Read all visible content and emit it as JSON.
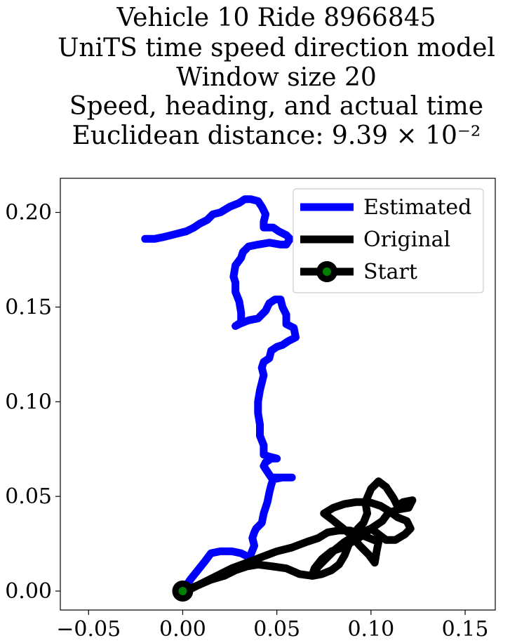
{
  "chart_data": {
    "type": "line",
    "title_lines": [
      "Vehicle 10 Ride 8966845",
      "UniTS time speed direction model",
      "Window size 20",
      "Speed, heading, and actual time",
      "Euclidean distance: 9.39 × 10⁻²"
    ],
    "xlabel": "",
    "ylabel": "",
    "xlim": [
      -0.065,
      0.166
    ],
    "ylim": [
      -0.01,
      0.218
    ],
    "x_ticks": [
      -0.05,
      0.0,
      0.05,
      0.1,
      0.15
    ],
    "x_tick_labels": [
      "−0.05",
      "0.00",
      "0.05",
      "0.10",
      "0.15"
    ],
    "y_ticks": [
      0.0,
      0.05,
      0.1,
      0.15,
      0.2
    ],
    "y_tick_labels": [
      "0.00",
      "0.05",
      "0.10",
      "0.15",
      "0.20"
    ],
    "grid": false,
    "legend_position": "top-right",
    "series": [
      {
        "name": "Estimated",
        "color": "#0000ff",
        "points": [
          [
            0.0,
            0.0
          ],
          [
            0.004,
            0.006
          ],
          [
            0.008,
            0.011
          ],
          [
            0.012,
            0.016
          ],
          [
            0.015,
            0.02
          ],
          [
            0.02,
            0.021
          ],
          [
            0.026,
            0.021
          ],
          [
            0.031,
            0.02
          ],
          [
            0.035,
            0.018
          ],
          [
            0.036,
            0.016
          ],
          [
            0.036,
            0.019
          ],
          [
            0.038,
            0.024
          ],
          [
            0.037,
            0.028
          ],
          [
            0.038,
            0.031
          ],
          [
            0.039,
            0.033
          ],
          [
            0.042,
            0.036
          ],
          [
            0.043,
            0.041
          ],
          [
            0.045,
            0.047
          ],
          [
            0.046,
            0.052
          ],
          [
            0.047,
            0.056
          ],
          [
            0.048,
            0.059
          ],
          [
            0.053,
            0.06
          ],
          [
            0.058,
            0.06
          ],
          [
            0.052,
            0.06
          ],
          [
            0.047,
            0.06
          ],
          [
            0.045,
            0.063
          ],
          [
            0.043,
            0.066
          ],
          [
            0.044,
            0.068
          ],
          [
            0.047,
            0.07
          ],
          [
            0.05,
            0.07
          ],
          [
            0.046,
            0.071
          ],
          [
            0.043,
            0.072
          ],
          [
            0.043,
            0.077
          ],
          [
            0.041,
            0.082
          ],
          [
            0.041,
            0.088
          ],
          [
            0.04,
            0.094
          ],
          [
            0.04,
            0.1
          ],
          [
            0.041,
            0.106
          ],
          [
            0.042,
            0.11
          ],
          [
            0.043,
            0.114
          ],
          [
            0.042,
            0.118
          ],
          [
            0.043,
            0.121
          ],
          [
            0.046,
            0.123
          ],
          [
            0.047,
            0.127
          ],
          [
            0.05,
            0.129
          ],
          [
            0.053,
            0.13
          ],
          [
            0.056,
            0.132
          ],
          [
            0.06,
            0.134
          ],
          [
            0.059,
            0.139
          ],
          [
            0.055,
            0.141
          ],
          [
            0.055,
            0.146
          ],
          [
            0.053,
            0.15
          ],
          [
            0.052,
            0.154
          ],
          [
            0.049,
            0.154
          ],
          [
            0.046,
            0.152
          ],
          [
            0.044,
            0.148
          ],
          [
            0.04,
            0.144
          ],
          [
            0.035,
            0.143
          ],
          [
            0.03,
            0.141
          ],
          [
            0.028,
            0.14
          ],
          [
            0.031,
            0.142
          ],
          [
            0.031,
            0.147
          ],
          [
            0.03,
            0.153
          ],
          [
            0.028,
            0.158
          ],
          [
            0.028,
            0.163
          ],
          [
            0.027,
            0.166
          ],
          [
            0.028,
            0.172
          ],
          [
            0.031,
            0.176
          ],
          [
            0.032,
            0.179
          ],
          [
            0.035,
            0.182
          ],
          [
            0.04,
            0.183
          ],
          [
            0.046,
            0.184
          ],
          [
            0.052,
            0.183
          ],
          [
            0.055,
            0.183
          ],
          [
            0.057,
            0.186
          ],
          [
            0.055,
            0.188
          ],
          [
            0.051,
            0.19
          ],
          [
            0.048,
            0.192
          ],
          [
            0.043,
            0.192
          ],
          [
            0.043,
            0.195
          ],
          [
            0.044,
            0.199
          ],
          [
            0.042,
            0.203
          ],
          [
            0.04,
            0.206
          ],
          [
            0.036,
            0.207
          ],
          [
            0.033,
            0.207
          ],
          [
            0.03,
            0.205
          ],
          [
            0.025,
            0.203
          ],
          [
            0.02,
            0.2
          ],
          [
            0.016,
            0.199
          ],
          [
            0.013,
            0.196
          ],
          [
            0.009,
            0.194
          ],
          [
            0.006,
            0.192
          ],
          [
            0.002,
            0.19
          ],
          [
            -0.002,
            0.189
          ],
          [
            -0.006,
            0.188
          ],
          [
            -0.01,
            0.187
          ],
          [
            -0.015,
            0.186
          ],
          [
            -0.02,
            0.186
          ]
        ]
      },
      {
        "name": "Original",
        "color": "#000000",
        "points": [
          [
            0.0,
            0.0
          ],
          [
            0.008,
            0.003
          ],
          [
            0.015,
            0.006
          ],
          [
            0.022,
            0.008
          ],
          [
            0.028,
            0.011
          ],
          [
            0.034,
            0.013
          ],
          [
            0.04,
            0.014
          ],
          [
            0.048,
            0.013
          ],
          [
            0.055,
            0.012
          ],
          [
            0.062,
            0.009
          ],
          [
            0.069,
            0.008
          ],
          [
            0.074,
            0.009
          ],
          [
            0.079,
            0.011
          ],
          [
            0.083,
            0.014
          ],
          [
            0.086,
            0.019
          ],
          [
            0.088,
            0.024
          ],
          [
            0.09,
            0.029
          ],
          [
            0.093,
            0.033
          ],
          [
            0.096,
            0.036
          ],
          [
            0.098,
            0.041
          ],
          [
            0.097,
            0.047
          ],
          [
            0.1,
            0.054
          ],
          [
            0.104,
            0.058
          ],
          [
            0.108,
            0.055
          ],
          [
            0.112,
            0.049
          ],
          [
            0.114,
            0.045
          ],
          [
            0.117,
            0.047
          ],
          [
            0.122,
            0.048
          ],
          [
            0.12,
            0.044
          ],
          [
            0.114,
            0.043
          ],
          [
            0.109,
            0.041
          ],
          [
            0.106,
            0.037
          ],
          [
            0.1,
            0.033
          ],
          [
            0.095,
            0.029
          ],
          [
            0.09,
            0.026
          ],
          [
            0.085,
            0.023
          ],
          [
            0.079,
            0.021
          ],
          [
            0.074,
            0.017
          ],
          [
            0.07,
            0.012
          ],
          [
            0.069,
            0.009
          ],
          [
            0.072,
            0.013
          ],
          [
            0.077,
            0.018
          ],
          [
            0.081,
            0.022
          ],
          [
            0.086,
            0.026
          ],
          [
            0.091,
            0.029
          ],
          [
            0.095,
            0.031
          ],
          [
            0.1,
            0.033
          ],
          [
            0.104,
            0.03
          ],
          [
            0.108,
            0.027
          ],
          [
            0.113,
            0.027
          ],
          [
            0.118,
            0.03
          ],
          [
            0.121,
            0.033
          ],
          [
            0.119,
            0.037
          ],
          [
            0.114,
            0.039
          ],
          [
            0.11,
            0.042
          ],
          [
            0.105,
            0.045
          ],
          [
            0.099,
            0.047
          ],
          [
            0.092,
            0.047
          ],
          [
            0.086,
            0.046
          ],
          [
            0.08,
            0.044
          ],
          [
            0.075,
            0.041
          ],
          [
            0.079,
            0.038
          ],
          [
            0.084,
            0.034
          ],
          [
            0.089,
            0.03
          ],
          [
            0.094,
            0.024
          ],
          [
            0.099,
            0.019
          ],
          [
            0.102,
            0.015
          ],
          [
            0.103,
            0.021
          ],
          [
            0.104,
            0.026
          ],
          [
            0.099,
            0.028
          ],
          [
            0.094,
            0.03
          ],
          [
            0.089,
            0.032
          ],
          [
            0.083,
            0.032
          ],
          [
            0.077,
            0.031
          ],
          [
            0.072,
            0.028
          ],
          [
            0.066,
            0.026
          ],
          [
            0.058,
            0.023
          ],
          [
            0.05,
            0.021
          ],
          [
            0.042,
            0.018
          ],
          [
            0.034,
            0.015
          ],
          [
            0.026,
            0.012
          ],
          [
            0.018,
            0.008
          ],
          [
            0.01,
            0.004
          ],
          [
            0.004,
            0.001
          ]
        ]
      }
    ],
    "start_marker": {
      "name": "Start",
      "point": [
        0.0,
        0.0
      ],
      "outer_color": "#000000",
      "inner_color": "#008000"
    },
    "legend": [
      {
        "label": "Estimated",
        "color": "#0000ff",
        "kind": "line"
      },
      {
        "label": "Original",
        "color": "#000000",
        "kind": "line"
      },
      {
        "label": "Start",
        "color": "#000000",
        "kind": "marker"
      }
    ]
  }
}
